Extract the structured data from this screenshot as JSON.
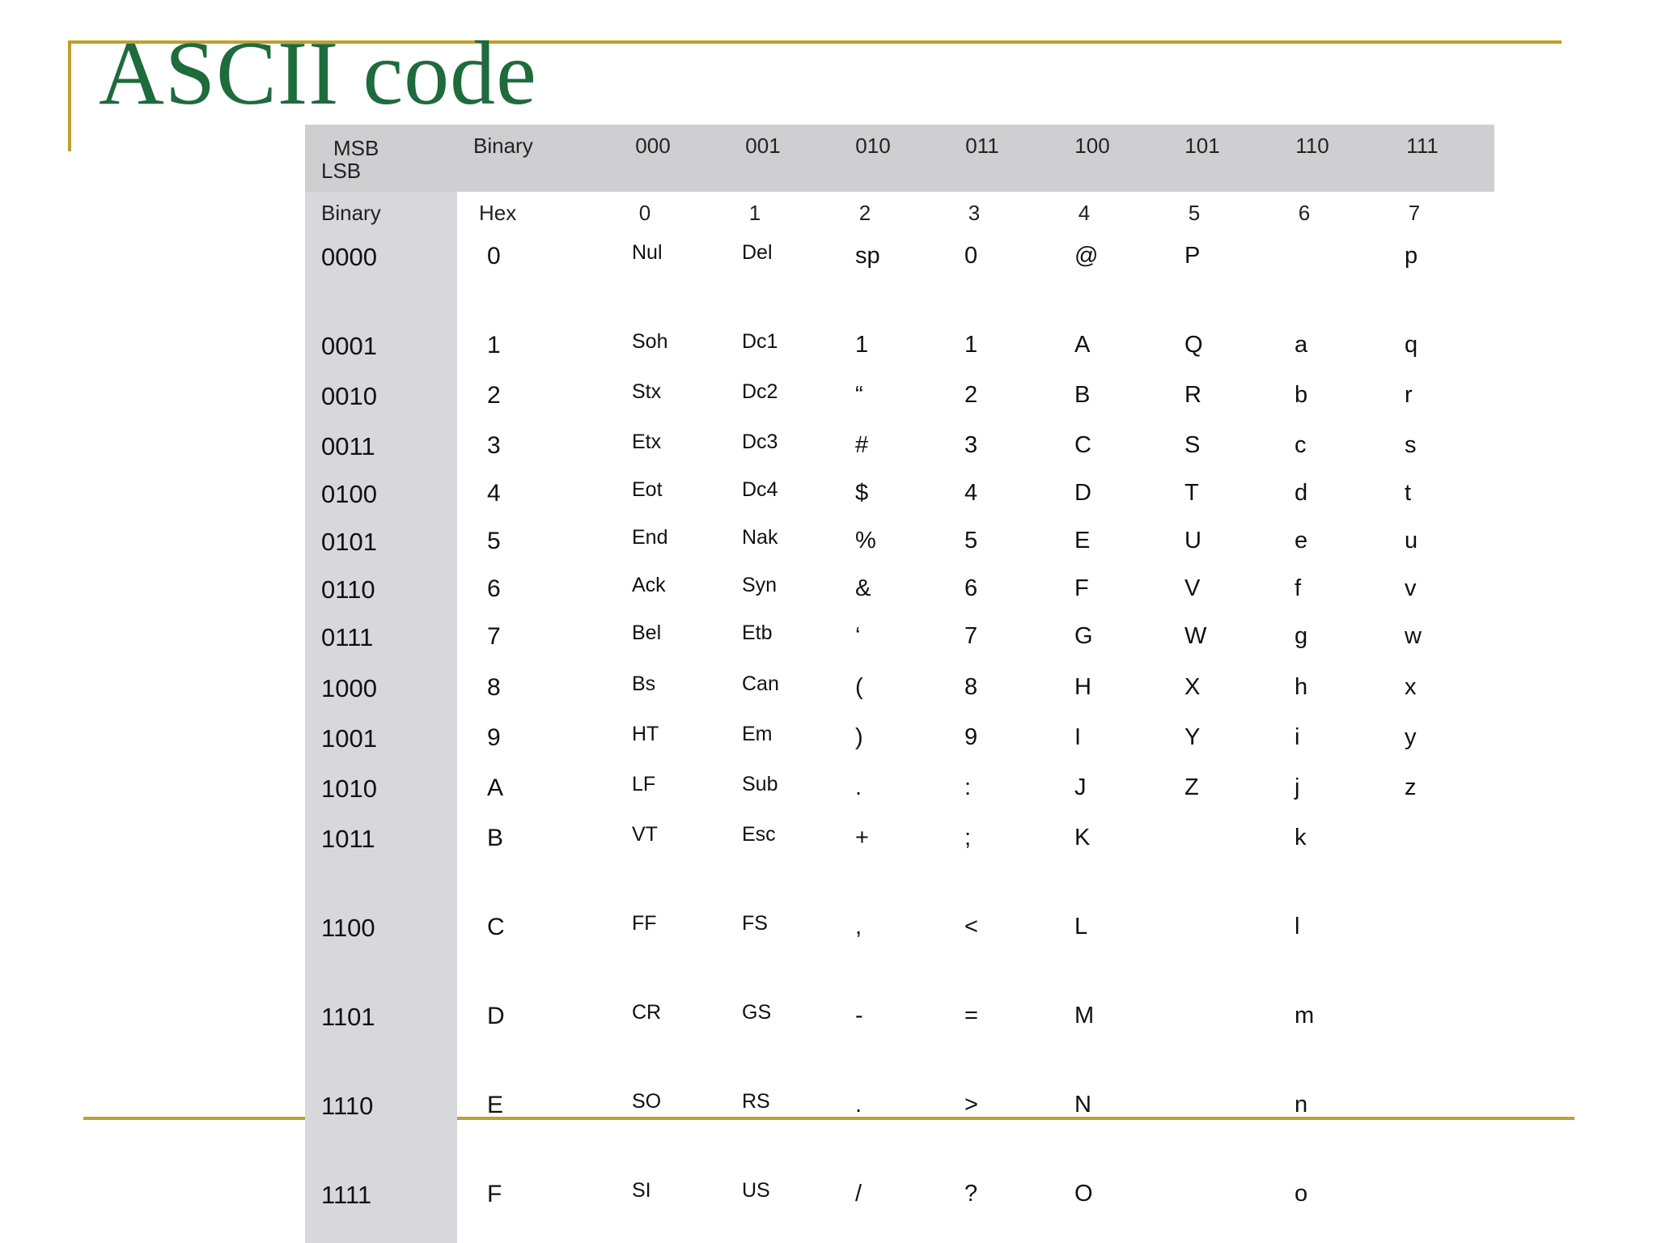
{
  "title": "ASCII code",
  "header": {
    "msb": "MSB",
    "lsb": "LSB",
    "binary_label": "Binary",
    "msb_values": [
      "000",
      "001",
      "010",
      "011",
      "100",
      "101",
      "110",
      "111"
    ],
    "row_binary_label": "Binary",
    "hex_label": "Hex",
    "hex_digits": [
      "0",
      "1",
      "2",
      "3",
      "4",
      "5",
      "6",
      "7"
    ]
  },
  "rows": [
    {
      "bin": "0000",
      "hex": "0",
      "cells": [
        "Nul",
        "Del",
        "sp",
        "0",
        "@",
        "P",
        "",
        "p"
      ]
    },
    {
      "bin": "0001",
      "hex": "1",
      "cells": [
        "Soh",
        "Dc1",
        "1",
        "1",
        "A",
        "Q",
        "a",
        "q"
      ]
    },
    {
      "bin": "0010",
      "hex": "2",
      "cells": [
        "Stx",
        "Dc2",
        "“",
        "2",
        "B",
        "R",
        "b",
        "r"
      ]
    },
    {
      "bin": "0011",
      "hex": "3",
      "cells": [
        "Etx",
        "Dc3",
        "#",
        "3",
        "C",
        "S",
        "c",
        "s"
      ]
    },
    {
      "bin": "0100",
      "hex": "4",
      "cells": [
        "Eot",
        "Dc4",
        "$",
        "4",
        "D",
        "T",
        "d",
        "t"
      ]
    },
    {
      "bin": "0101",
      "hex": "5",
      "cells": [
        "End",
        "Nak",
        "%",
        "5",
        "E",
        "U",
        "e",
        "u"
      ]
    },
    {
      "bin": "0110",
      "hex": "6",
      "cells": [
        "Ack",
        "Syn",
        "&",
        "6",
        "F",
        "V",
        "f",
        "v"
      ]
    },
    {
      "bin": "0111",
      "hex": "7",
      "cells": [
        "Bel",
        "Etb",
        "‘",
        "7",
        "G",
        "W",
        "g",
        "w"
      ]
    },
    {
      "bin": "1000",
      "hex": "8",
      "cells": [
        "Bs",
        "Can",
        "(",
        "8",
        "H",
        "X",
        "h",
        "x"
      ]
    },
    {
      "bin": "1001",
      "hex": "9",
      "cells": [
        "HT",
        "Em",
        ")",
        "9",
        "I",
        "Y",
        "i",
        "y"
      ]
    },
    {
      "bin": "1010",
      "hex": "A",
      "cells": [
        "LF",
        "Sub",
        ".",
        ":",
        "J",
        "Z",
        "j",
        "z"
      ]
    },
    {
      "bin": "1011",
      "hex": "B",
      "cells": [
        "VT",
        "Esc",
        "+",
        ";",
        "K",
        "",
        "k",
        ""
      ]
    },
    {
      "bin": "1100",
      "hex": "C",
      "cells": [
        "FF",
        "FS",
        ",",
        "<",
        "L",
        "",
        "l",
        ""
      ]
    },
    {
      "bin": "1101",
      "hex": "D",
      "cells": [
        "CR",
        "GS",
        "-",
        "=",
        "M",
        "",
        "m",
        ""
      ]
    },
    {
      "bin": "1110",
      "hex": "E",
      "cells": [
        "SO",
        "RS",
        ".",
        ">",
        "N",
        "",
        "n",
        ""
      ]
    },
    {
      "bin": "1111",
      "hex": "F",
      "cells": [
        "SI",
        "US",
        "/",
        "?",
        "O",
        "",
        "o",
        ""
      ]
    }
  ]
}
